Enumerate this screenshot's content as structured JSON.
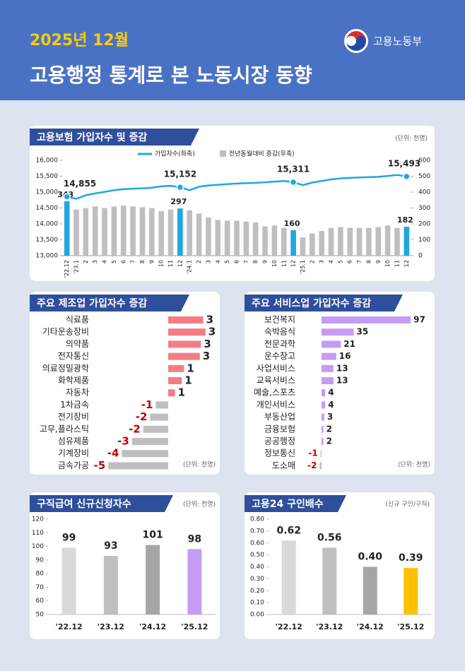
{
  "header": {
    "date": "2025년 12월",
    "title": "고용행정 통계로 본 노동시장 동향",
    "ministry": "고용노동부"
  },
  "chart_data": [
    {
      "type": "combo",
      "title": "고용보험 가입자수 및 증감",
      "unit": "(단위: 천명)",
      "categories": [
        "'22.12",
        "'23.1",
        "2",
        "3",
        "4",
        "5",
        "6",
        "7",
        "8",
        "9",
        "10",
        "11",
        "12",
        "'24.1",
        "2",
        "3",
        "4",
        "5",
        "6",
        "7",
        "8",
        "9",
        "10",
        "11",
        "12",
        "'25.1",
        "2",
        "3",
        "4",
        "5",
        "6",
        "7",
        "8",
        "9",
        "10",
        "11",
        "12"
      ],
      "ylim": [
        13000,
        16000
      ],
      "yticks": [
        {
          "value": 13000,
          "label": "13,000"
        },
        {
          "value": 13500,
          "label": "13,500"
        },
        {
          "value": 14000,
          "label": "14,000"
        },
        {
          "value": 14500,
          "label": "14,500"
        },
        {
          "value": 15000,
          "label": "15,000"
        },
        {
          "value": 15500,
          "label": "15,500"
        },
        {
          "value": 16000,
          "label": "16,000"
        }
      ],
      "y2lim": [
        0,
        600
      ],
      "y2ticks": [
        0,
        100,
        200,
        300,
        400,
        500,
        600
      ],
      "series": [
        {
          "name": "가입자수(좌축)",
          "type": "line",
          "color": "#1fa7e0",
          "values": [
            14855,
            14790,
            14900,
            14960,
            15010,
            15060,
            15090,
            15110,
            15120,
            15140,
            15180,
            15200,
            15152,
            15060,
            15170,
            15210,
            15230,
            15250,
            15270,
            15280,
            15290,
            15310,
            15330,
            15350,
            15311,
            15220,
            15300,
            15350,
            15400,
            15430,
            15450,
            15460,
            15470,
            15480,
            15510,
            15540,
            15493
          ],
          "value_labels": [
            "14,855",
            null,
            null,
            null,
            null,
            null,
            null,
            null,
            null,
            null,
            null,
            null,
            "15,152",
            null,
            null,
            null,
            null,
            null,
            null,
            null,
            null,
            null,
            null,
            null,
            "15,311",
            null,
            null,
            null,
            null,
            null,
            null,
            null,
            null,
            null,
            null,
            null,
            "15,493"
          ]
        },
        {
          "name": "전년동월대비 증감(우축)",
          "type": "bar",
          "axis": "y2",
          "color": "#bfbfbf",
          "values": [
            343,
            290,
            300,
            310,
            300,
            310,
            315,
            310,
            305,
            300,
            280,
            290,
            297,
            285,
            265,
            240,
            225,
            220,
            220,
            215,
            210,
            185,
            190,
            175,
            160,
            115,
            140,
            155,
            175,
            180,
            175,
            175,
            175,
            180,
            190,
            175,
            182
          ],
          "colors": [
            "#1fa7e0",
            "#bfbfbf",
            "#bfbfbf",
            "#bfbfbf",
            "#bfbfbf",
            "#bfbfbf",
            "#bfbfbf",
            "#bfbfbf",
            "#bfbfbf",
            "#bfbfbf",
            "#bfbfbf",
            "#bfbfbf",
            "#1fa7e0",
            "#bfbfbf",
            "#bfbfbf",
            "#bfbfbf",
            "#bfbfbf",
            "#bfbfbf",
            "#bfbfbf",
            "#bfbfbf",
            "#bfbfbf",
            "#bfbfbf",
            "#bfbfbf",
            "#bfbfbf",
            "#1fa7e0",
            "#bfbfbf",
            "#bfbfbf",
            "#bfbfbf",
            "#bfbfbf",
            "#bfbfbf",
            "#bfbfbf",
            "#bfbfbf",
            "#bfbfbf",
            "#bfbfbf",
            "#bfbfbf",
            "#bfbfbf",
            "#1fa7e0"
          ]
        }
      ]
    },
    {
      "type": "hbar",
      "title": "주요 제조업 가입자수 증감",
      "unit": "(단위: 천명)",
      "categories": [
        "식료품",
        "기타운송장비",
        "의약품",
        "전자통신",
        "의료정밀광학",
        "화학제품",
        "자동차",
        "1차금속",
        "전기장비",
        "고무,플라스틱",
        "섬유제품",
        "기계장비",
        "금속가공"
      ],
      "values": [
        3.1,
        3.3,
        2.9,
        2.8,
        1.4,
        1.2,
        0.6,
        -1.1,
        -1.6,
        -2.2,
        -3.2,
        -4.1,
        -5.3
      ],
      "value_labels": [
        "3",
        "3",
        "3",
        "3",
        "1",
        "1",
        "1",
        "-1",
        "-2",
        "-2",
        "-3",
        "-4",
        "-5"
      ],
      "color": "#f47c84",
      "negative_color": "#bfbfbf",
      "negative_label_color": "#c00000"
    },
    {
      "type": "hbar",
      "title": "주요 서비스업 가입자수 증감",
      "unit": "(단위: 천명)",
      "categories": [
        "보건복지",
        "숙박음식",
        "전문과학",
        "운수창고",
        "사업서비스",
        "교육서비스",
        "예술,스포츠",
        "개인서비스",
        "부동산업",
        "금융보험",
        "공공행정",
        "정보통신",
        "도소매"
      ],
      "values": [
        97,
        35,
        21,
        16,
        13,
        13,
        4,
        4,
        3,
        2,
        2,
        -1,
        -2
      ],
      "color": "#c59cf4",
      "negative_color": "#bfbfbf",
      "negative_label_color": "#c00000"
    },
    {
      "type": "bar",
      "title": "구직급여 신규신청자수",
      "unit": "(단위: 천명)",
      "categories": [
        "'22.12",
        "'23.12",
        "'24.12",
        "'25.12"
      ],
      "values": [
        99,
        93,
        101,
        98
      ],
      "colors": [
        "#d9d9d9",
        "#bfbfbf",
        "#a6a6a6",
        "#c59cf4"
      ],
      "ylim": [
        50,
        120
      ],
      "yticks": [
        50,
        60,
        70,
        80,
        90,
        100,
        110,
        120
      ]
    },
    {
      "type": "bar",
      "title": "고용24 구인배수",
      "unit": "(신규 구인/구직)",
      "categories": [
        "'22.12",
        "'23.12",
        "'24.12",
        "'25.12"
      ],
      "values": [
        0.62,
        0.56,
        0.4,
        0.39
      ],
      "value_labels": [
        "0.62",
        "0.56",
        "0.40",
        "0.39"
      ],
      "colors": [
        "#d9d9d9",
        "#bfbfbf",
        "#a6a6a6",
        "#ffc000"
      ],
      "ylim": [
        0,
        0.8
      ],
      "yticks": [
        {
          "value": 0,
          "label": "0.00"
        },
        {
          "value": 0.1,
          "label": "0.10"
        },
        {
          "value": 0.2,
          "label": "0.20"
        },
        {
          "value": 0.3,
          "label": "0.30"
        },
        {
          "value": 0.4,
          "label": "0.40"
        },
        {
          "value": 0.5,
          "label": "0.50"
        },
        {
          "value": 0.6,
          "label": "0.60"
        },
        {
          "value": 0.7,
          "label": "0.70"
        },
        {
          "value": 0.8,
          "label": "0.80"
        }
      ]
    }
  ]
}
